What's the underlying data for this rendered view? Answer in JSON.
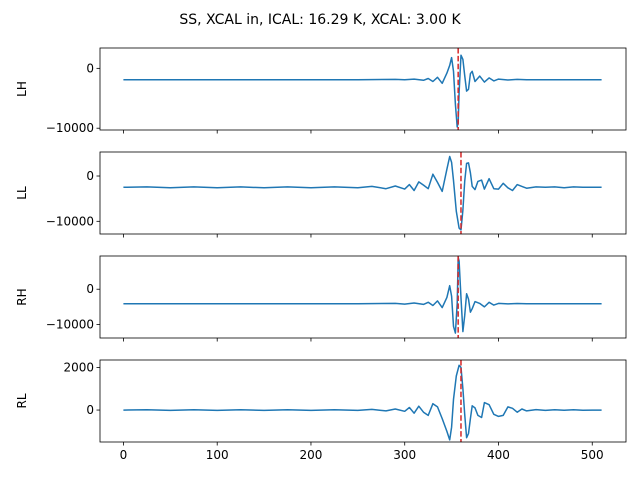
{
  "title": "SS, XCAL in, ICAL: 16.29 K, XCAL: 3.00 K",
  "colors": {
    "series": "#1f77b4",
    "marker": "#d62728"
  },
  "chart_data": [
    {
      "type": "line",
      "ylabel": "LH",
      "xlim": [
        -25,
        536
      ],
      "ylim": [
        -10300,
        3400
      ],
      "yticks": [
        0,
        -10000
      ],
      "ytick_labels": [
        "0",
        "−10000"
      ],
      "xticks": [
        0,
        100,
        200,
        300,
        400,
        500
      ],
      "xtick_labels": [],
      "marker_x": 357,
      "series": [
        {
          "x": [
            0,
            50,
            100,
            150,
            200,
            250,
            290,
            300,
            310,
            320,
            325,
            330,
            335,
            340,
            345,
            348,
            350,
            352,
            354,
            356,
            357,
            358,
            360,
            362,
            364,
            366,
            368,
            370,
            372,
            375,
            380,
            385,
            390,
            395,
            400,
            410,
            420,
            430,
            450,
            480,
            510
          ],
          "y": [
            -1900,
            -1900,
            -1900,
            -1900,
            -1900,
            -1900,
            -1850,
            -1900,
            -1800,
            -2000,
            -1700,
            -2200,
            -1500,
            -2500,
            -800,
            500,
            1800,
            -500,
            -6000,
            -9800,
            -9000,
            -4000,
            2200,
            1500,
            -1200,
            -3800,
            -3500,
            -900,
            -500,
            -2200,
            -1300,
            -2300,
            -1600,
            -2100,
            -1800,
            -1950,
            -1850,
            -1900,
            -1900,
            -1900,
            -1900
          ]
        }
      ]
    },
    {
      "type": "line",
      "ylabel": "LL",
      "xlim": [
        -25,
        536
      ],
      "ylim": [
        -12800,
        5300
      ],
      "yticks": [
        0,
        -10000
      ],
      "ytick_labels": [
        "0",
        "−10000"
      ],
      "xticks": [
        0,
        100,
        200,
        300,
        400,
        500
      ],
      "xtick_labels": [],
      "marker_x": 360,
      "series": [
        {
          "x": [
            0,
            25,
            50,
            75,
            100,
            125,
            150,
            175,
            200,
            225,
            250,
            265,
            280,
            290,
            300,
            305,
            310,
            315,
            320,
            325,
            330,
            335,
            340,
            345,
            348,
            350,
            352,
            355,
            358,
            360,
            362,
            364,
            366,
            368,
            370,
            372,
            375,
            378,
            382,
            385,
            390,
            395,
            400,
            405,
            410,
            415,
            420,
            425,
            430,
            440,
            450,
            460,
            470,
            480,
            490,
            500,
            510
          ],
          "y": [
            -2500,
            -2400,
            -2600,
            -2400,
            -2600,
            -2400,
            -2600,
            -2400,
            -2600,
            -2400,
            -2600,
            -2300,
            -2800,
            -2200,
            -2900,
            -1900,
            -3200,
            -1300,
            -2000,
            -2800,
            400,
            -1400,
            -3400,
            1500,
            4300,
            3000,
            -1000,
            -7800,
            -11500,
            -11900,
            -7500,
            -1200,
            2800,
            2900,
            700,
            -2300,
            -3000,
            -1200,
            -900,
            -2900,
            -600,
            -2800,
            -2900,
            -1600,
            -2600,
            -3200,
            -1900,
            -2300,
            -2700,
            -2400,
            -2500,
            -2400,
            -2600,
            -2400,
            -2500,
            -2500,
            -2500
          ]
        }
      ]
    },
    {
      "type": "line",
      "ylabel": "RH",
      "xlim": [
        -25,
        536
      ],
      "ylim": [
        -13800,
        9400
      ],
      "yticks": [
        0,
        -10000
      ],
      "ytick_labels": [
        "0",
        "−10000"
      ],
      "xticks": [
        0,
        100,
        200,
        300,
        400,
        500
      ],
      "xtick_labels": [],
      "marker_x": 357,
      "series": [
        {
          "x": [
            0,
            50,
            100,
            150,
            200,
            250,
            290,
            300,
            310,
            320,
            325,
            330,
            335,
            340,
            345,
            348,
            350,
            352,
            354,
            356,
            357,
            358,
            360,
            362,
            364,
            366,
            368,
            370,
            372,
            375,
            380,
            385,
            390,
            395,
            400,
            410,
            420,
            430,
            450,
            480,
            510
          ],
          "y": [
            -4100,
            -4100,
            -4100,
            -4100,
            -4100,
            -4100,
            -4000,
            -4200,
            -3900,
            -4300,
            -3700,
            -4600,
            -3300,
            -5200,
            -2300,
            1000,
            -2000,
            -10500,
            -12400,
            -4000,
            9000,
            8000,
            -2500,
            -12000,
            -7500,
            -1300,
            -2800,
            -6500,
            -5500,
            -3500,
            -4000,
            -5000,
            -3700,
            -4500,
            -4000,
            -4150,
            -4050,
            -4100,
            -4100,
            -4100,
            -4100
          ]
        }
      ]
    },
    {
      "type": "line",
      "ylabel": "RL",
      "xlim": [
        -25,
        536
      ],
      "ylim": [
        -1500,
        2350
      ],
      "yticks": [
        2000,
        0
      ],
      "ytick_labels": [
        "2000",
        "0"
      ],
      "xticks": [
        0,
        100,
        200,
        300,
        400,
        500
      ],
      "xtick_labels": [
        "0",
        "100",
        "200",
        "300",
        "400",
        "500"
      ],
      "marker_x": 360,
      "series": [
        {
          "x": [
            0,
            25,
            50,
            75,
            100,
            125,
            150,
            175,
            200,
            225,
            250,
            265,
            280,
            290,
            300,
            305,
            310,
            315,
            320,
            325,
            330,
            335,
            340,
            345,
            348,
            350,
            352,
            355,
            358,
            360,
            362,
            364,
            366,
            368,
            370,
            372,
            375,
            378,
            382,
            385,
            390,
            395,
            400,
            405,
            410,
            415,
            420,
            425,
            430,
            440,
            450,
            460,
            470,
            480,
            490,
            500,
            510
          ],
          "y": [
            0,
            15,
            -15,
            15,
            -15,
            15,
            -15,
            15,
            -15,
            15,
            -15,
            30,
            -40,
            50,
            -60,
            120,
            -150,
            180,
            -100,
            -250,
            300,
            150,
            -400,
            -1000,
            -1400,
            -800,
            500,
            1600,
            2100,
            2000,
            1000,
            -200,
            -1300,
            -1100,
            -400,
            200,
            100,
            -250,
            -350,
            350,
            250,
            -200,
            -300,
            -250,
            150,
            80,
            -100,
            50,
            -40,
            20,
            -15,
            10,
            -10,
            10,
            -5,
            0,
            0
          ]
        }
      ]
    }
  ]
}
